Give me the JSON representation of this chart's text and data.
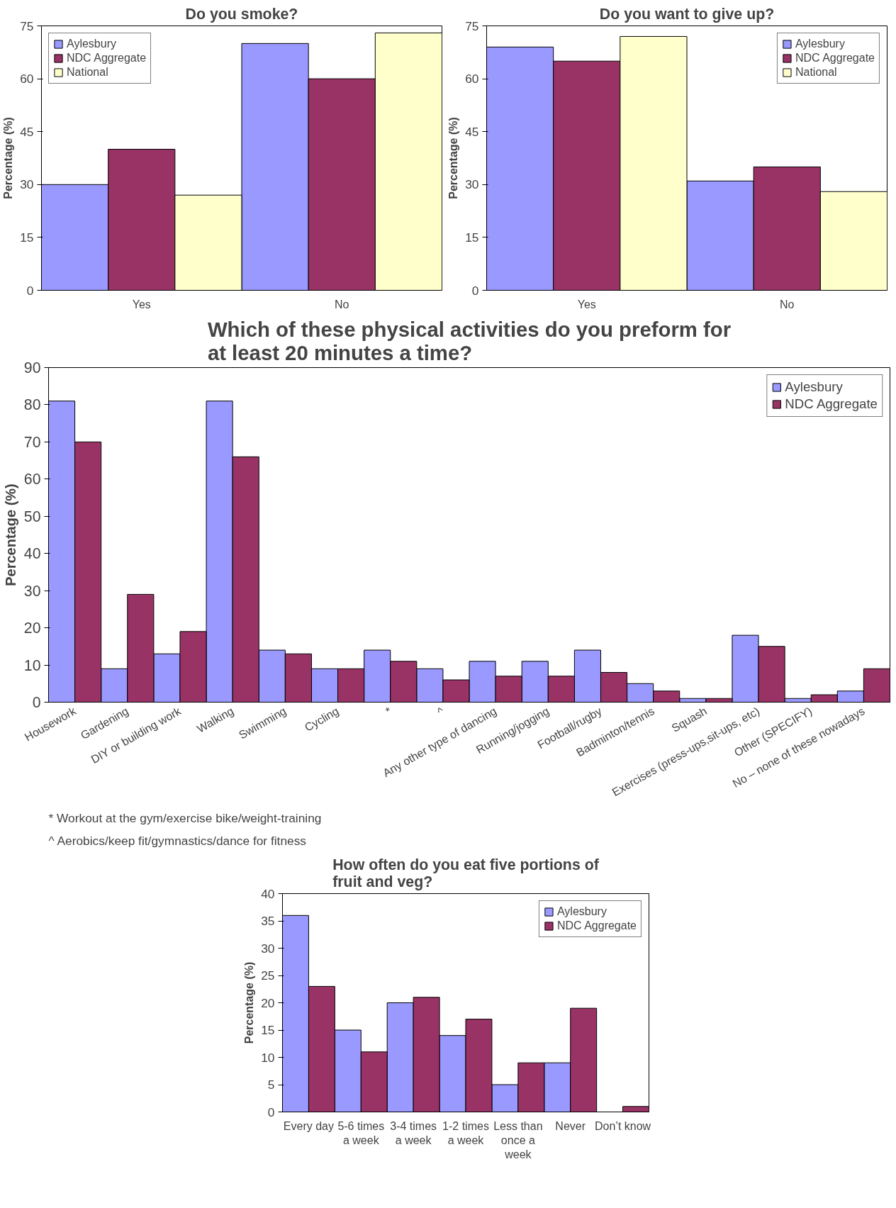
{
  "chart_data": [
    {
      "type": "bar",
      "title": "Do you smoke?",
      "ylabel": "Percentage (%)",
      "categories": [
        "Yes",
        "No"
      ],
      "ylim": [
        0,
        75
      ],
      "yticks": [
        0,
        15,
        30,
        45,
        60,
        75
      ],
      "legend": "top left",
      "series": [
        {
          "name": "Aylesbury",
          "color": "#9999ff",
          "values": [
            30,
            70
          ]
        },
        {
          "name": "NDC Aggregate",
          "color": "#993366",
          "values": [
            40,
            60
          ]
        },
        {
          "name": "National",
          "color": "#ffffcc",
          "values": [
            27,
            73
          ]
        }
      ]
    },
    {
      "type": "bar",
      "title": "Do you want to give up?",
      "ylabel": "Percentage (%)",
      "categories": [
        "Yes",
        "No"
      ],
      "ylim": [
        0,
        75
      ],
      "yticks": [
        0,
        15,
        30,
        45,
        60,
        75
      ],
      "legend": "top right",
      "series": [
        {
          "name": "Aylesbury",
          "color": "#9999ff",
          "values": [
            69,
            31
          ]
        },
        {
          "name": "NDC Aggregate",
          "color": "#993366",
          "values": [
            65,
            35
          ]
        },
        {
          "name": "National",
          "color": "#ffffcc",
          "values": [
            72,
            28
          ]
        }
      ]
    },
    {
      "type": "bar",
      "title": "Which of these physical activities do you preform for at least 20 minutes a time?",
      "ylabel": "Percentage (%)",
      "categories": [
        "Housework",
        "Gardening",
        "DIY or building work",
        "Walking",
        "Swimming",
        "Cycling",
        "*",
        "^",
        "Any other type of dancing",
        "Running/jogging",
        "Football/rugby",
        "Badminton/tennis",
        "Squash",
        "Exercises (press-ups,sit-ups, etc)",
        "Other (SPECIFY)",
        "No – none of these nowadays"
      ],
      "ylim": [
        0,
        90
      ],
      "yticks": [
        0,
        10,
        20,
        30,
        40,
        50,
        60,
        70,
        80,
        90
      ],
      "legend": "top right",
      "series": [
        {
          "name": "Aylesbury",
          "color": "#9999ff",
          "values": [
            81,
            9,
            13,
            81,
            14,
            9,
            14,
            9,
            11,
            11,
            14,
            5,
            1,
            18,
            1,
            3
          ]
        },
        {
          "name": "NDC Aggregate",
          "color": "#993366",
          "values": [
            70,
            29,
            19,
            66,
            13,
            9,
            11,
            6,
            7,
            7,
            8,
            3,
            1,
            15,
            2,
            9
          ]
        }
      ],
      "annotations": [
        "* Workout at the gym/exercise bike/weight-training",
        "^ Aerobics/keep fit/gymnastics/dance for fitness"
      ]
    },
    {
      "type": "bar",
      "title": "How often do you eat five portions of fruit and veg?",
      "ylabel": "Percentage (%)",
      "categories": [
        "Every day",
        "5-6 times a week",
        "3-4 times a week",
        "1-2 times a week",
        "Less than once a week",
        "Never",
        "Don’t know"
      ],
      "ylim": [
        0,
        40
      ],
      "yticks": [
        0,
        5,
        10,
        15,
        20,
        25,
        30,
        35,
        40
      ],
      "legend": "top right",
      "series": [
        {
          "name": "Aylesbury",
          "color": "#9999ff",
          "values": [
            36,
            15,
            20,
            14,
            5,
            9,
            null
          ]
        },
        {
          "name": "NDC Aggregate",
          "color": "#993366",
          "values": [
            23,
            11,
            21,
            17,
            9,
            19,
            1
          ]
        }
      ]
    }
  ]
}
